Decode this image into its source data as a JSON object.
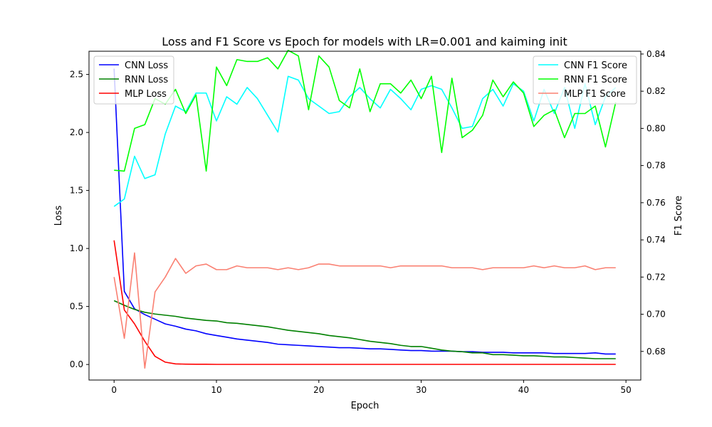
{
  "chart_data": {
    "type": "line",
    "title": "Loss and F1 Score vs Epoch for models with LR=0.001 and kaiming init",
    "xlabel": "Epoch",
    "ylabel": "Loss",
    "y2label": "F1 Score",
    "xlim": [
      -2.45,
      51.45
    ],
    "ylim": [
      -0.134,
      2.7
    ],
    "y2lim": [
      0.6646,
      0.8415
    ],
    "xticks": [
      0,
      10,
      20,
      30,
      40,
      50
    ],
    "xtick_labels": [
      "0",
      "10",
      "20",
      "30",
      "40",
      "50"
    ],
    "yticks": [
      0.0,
      0.5,
      1.0,
      1.5,
      2.0,
      2.5
    ],
    "ytick_labels": [
      "0.0",
      "0.5",
      "1.0",
      "1.5",
      "2.0",
      "2.5"
    ],
    "y2ticks": [
      0.68,
      0.7,
      0.72,
      0.74,
      0.76,
      0.78,
      0.8,
      0.82,
      0.84
    ],
    "y2tick_labels": [
      "0.68",
      "0.70",
      "0.72",
      "0.74",
      "0.76",
      "0.78",
      "0.80",
      "0.82",
      "0.84"
    ],
    "grid": false,
    "x": [
      0,
      1,
      2,
      3,
      4,
      5,
      6,
      7,
      8,
      9,
      10,
      11,
      12,
      13,
      14,
      15,
      16,
      17,
      18,
      19,
      20,
      21,
      22,
      23,
      24,
      25,
      26,
      27,
      28,
      29,
      30,
      31,
      32,
      33,
      34,
      35,
      36,
      37,
      38,
      39,
      40,
      41,
      42,
      43,
      44,
      45,
      46,
      47,
      48,
      49
    ],
    "series": [
      {
        "name": "CNN Loss",
        "axis": "left",
        "color": "#0000ff",
        "values": [
          2.55,
          0.63,
          0.48,
          0.43,
          0.39,
          0.35,
          0.33,
          0.305,
          0.29,
          0.265,
          0.25,
          0.235,
          0.22,
          0.21,
          0.2,
          0.19,
          0.175,
          0.17,
          0.165,
          0.16,
          0.155,
          0.15,
          0.145,
          0.145,
          0.14,
          0.135,
          0.135,
          0.13,
          0.125,
          0.12,
          0.12,
          0.115,
          0.115,
          0.115,
          0.11,
          0.11,
          0.105,
          0.105,
          0.105,
          0.1,
          0.1,
          0.1,
          0.1,
          0.095,
          0.095,
          0.095,
          0.095,
          0.1,
          0.09,
          0.09
        ]
      },
      {
        "name": "RNN Loss",
        "axis": "left",
        "color": "#008000",
        "values": [
          0.55,
          0.51,
          0.475,
          0.45,
          0.435,
          0.425,
          0.415,
          0.4,
          0.39,
          0.38,
          0.375,
          0.36,
          0.355,
          0.345,
          0.335,
          0.325,
          0.31,
          0.295,
          0.285,
          0.275,
          0.265,
          0.25,
          0.24,
          0.23,
          0.215,
          0.2,
          0.19,
          0.18,
          0.165,
          0.155,
          0.155,
          0.14,
          0.125,
          0.115,
          0.11,
          0.1,
          0.1,
          0.085,
          0.085,
          0.08,
          0.075,
          0.075,
          0.07,
          0.065,
          0.065,
          0.06,
          0.055,
          0.05,
          0.05,
          0.05
        ]
      },
      {
        "name": "MLP Loss",
        "axis": "left",
        "color": "#ff0000",
        "values": [
          1.07,
          0.47,
          0.35,
          0.2,
          0.07,
          0.02,
          0.005,
          0.003,
          0.002,
          0.002,
          0.001,
          0.001,
          0.001,
          0.001,
          0.001,
          0.001,
          0.001,
          0.001,
          0.001,
          0.001,
          0.001,
          0.001,
          0.001,
          0.001,
          0.001,
          0.001,
          0.001,
          0.001,
          0.001,
          0.001,
          0.001,
          0.001,
          0.001,
          0.001,
          0.001,
          0.001,
          0.001,
          0.001,
          0.001,
          0.001,
          0.001,
          0.001,
          0.001,
          0.001,
          0.001,
          0.001,
          0.001,
          0.001,
          0.001,
          0.001
        ]
      },
      {
        "name": "CNN F1 Score",
        "axis": "right",
        "color": "#00ffff",
        "values": [
          0.758,
          0.762,
          0.785,
          0.773,
          0.775,
          0.797,
          0.812,
          0.809,
          0.819,
          0.819,
          0.804,
          0.817,
          0.813,
          0.822,
          0.816,
          0.807,
          0.798,
          0.828,
          0.826,
          0.816,
          0.812,
          0.808,
          0.809,
          0.817,
          0.822,
          0.816,
          0.811,
          0.821,
          0.816,
          0.81,
          0.821,
          0.823,
          0.821,
          0.811,
          0.8,
          0.801,
          0.816,
          0.821,
          0.812,
          0.824,
          0.82,
          0.804,
          0.821,
          0.808,
          0.822,
          0.8,
          0.824,
          0.802,
          0.817,
          0.822
        ]
      },
      {
        "name": "RNN F1 Score",
        "axis": "right",
        "color": "#00ff00",
        "values": [
          0.7775,
          0.777,
          0.8,
          0.802,
          0.816,
          0.813,
          0.821,
          0.808,
          0.818,
          0.777,
          0.833,
          0.823,
          0.837,
          0.836,
          0.836,
          0.838,
          0.832,
          0.842,
          0.839,
          0.81,
          0.839,
          0.833,
          0.815,
          0.811,
          0.832,
          0.809,
          0.824,
          0.824,
          0.819,
          0.826,
          0.816,
          0.828,
          0.787,
          0.827,
          0.795,
          0.799,
          0.807,
          0.826,
          0.817,
          0.825,
          0.819,
          0.801,
          0.807,
          0.81,
          0.795,
          0.808,
          0.808,
          0.812,
          0.79,
          0.814
        ]
      },
      {
        "name": "MLP F1 Score",
        "axis": "right",
        "color": "#fa8072",
        "values": [
          0.72,
          0.687,
          0.733,
          0.671,
          0.712,
          0.72,
          0.73,
          0.722,
          0.726,
          0.727,
          0.724,
          0.724,
          0.726,
          0.725,
          0.725,
          0.725,
          0.724,
          0.725,
          0.724,
          0.725,
          0.727,
          0.727,
          0.726,
          0.726,
          0.726,
          0.726,
          0.726,
          0.725,
          0.726,
          0.726,
          0.726,
          0.726,
          0.726,
          0.725,
          0.725,
          0.725,
          0.724,
          0.725,
          0.725,
          0.725,
          0.725,
          0.726,
          0.725,
          0.726,
          0.725,
          0.725,
          0.726,
          0.724,
          0.725,
          0.725
        ]
      }
    ],
    "legends": [
      {
        "placement": "upper-left",
        "entries": [
          "CNN Loss",
          "RNN Loss",
          "MLP Loss"
        ]
      },
      {
        "placement": "upper-right",
        "entries": [
          "CNN F1 Score",
          "RNN F1 Score",
          "MLP F1 Score"
        ]
      }
    ]
  }
}
